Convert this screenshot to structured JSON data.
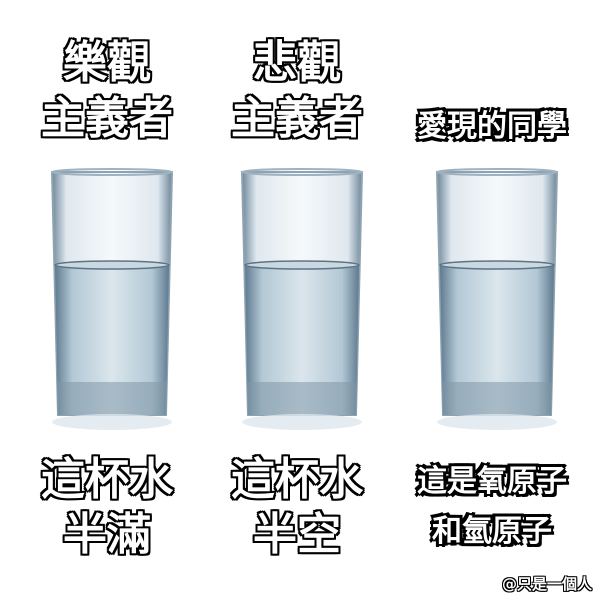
{
  "panels": [
    {
      "top": [
        "樂觀",
        "主義者"
      ],
      "bottom": [
        "這杯水",
        "半滿"
      ],
      "style": "big"
    },
    {
      "top": [
        "悲觀",
        "主義者"
      ],
      "bottom": [
        "這杯水",
        "半空"
      ],
      "style": "big"
    },
    {
      "top": [
        "",
        "愛現的同學"
      ],
      "bottom": [
        "這是氧原子",
        "和氫原子"
      ],
      "style": "small"
    }
  ],
  "watermark": "@只是一個人",
  "colors": {
    "water": "#bcd0dc",
    "glass_edge": "#7f97a8",
    "caption_fill": "#ffffff",
    "caption_outline": "#000000"
  }
}
